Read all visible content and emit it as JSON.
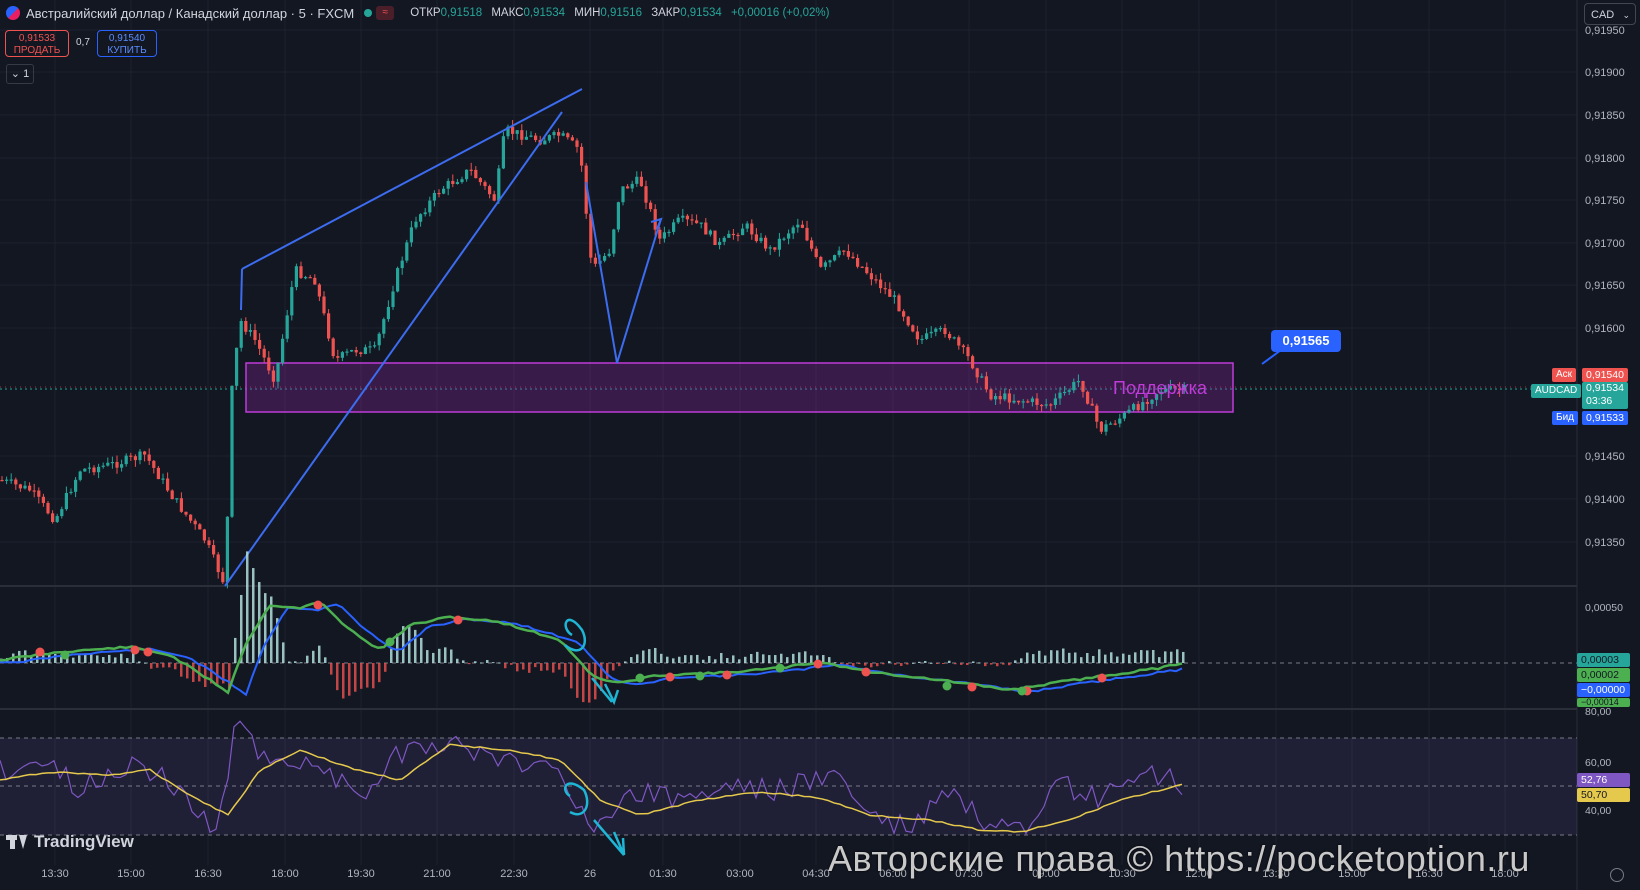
{
  "header": {
    "symbol": "Австралийский доллар / Канадский доллар · 5 · FXCM",
    "market_badge": "≈",
    "ohlc": [
      {
        "label": "ОТКР",
        "value": "0,91518"
      },
      {
        "label": "МАКС",
        "value": "0,91534"
      },
      {
        "label": "МИН",
        "value": "0,91516"
      },
      {
        "label": "ЗАКР",
        "value": "0,91534"
      }
    ],
    "change": "+0,00016 (+0,02%)"
  },
  "trade": {
    "sell_price": "0,91533",
    "sell_label": "ПРОДАТЬ",
    "spread": "0,7",
    "buy_price": "0,91540",
    "buy_label": "КУПИТЬ"
  },
  "collapse_label": "⌄ 1",
  "currency": "CAD",
  "price_axis": [
    "0,91950",
    "0,91900",
    "0,91850",
    "0,91800",
    "0,91750",
    "0,91700",
    "0,91650",
    "0,91600",
    "0,91450",
    "0,91400",
    "0,91350"
  ],
  "price_tags": {
    "ask_label": "Аск",
    "ask": "0,91540",
    "symbol_label": "AUDCAD",
    "last": "0,91534",
    "countdown": "03:36",
    "bid_label": "Бид",
    "bid": "0,91533"
  },
  "macd_axis": [
    "0,00050"
  ],
  "macd_tags": [
    "0,00003",
    "0,00002",
    "−0,00000",
    "−0,00014"
  ],
  "rsi_axis": [
    "80,00",
    "60,00",
    "40,00"
  ],
  "rsi_tags": [
    "52,76",
    "50,70"
  ],
  "time_axis": [
    "13:30",
    "15:00",
    "16:30",
    "18:00",
    "19:30",
    "21:00",
    "22:30",
    "26",
    "01:30",
    "03:00",
    "04:30",
    "06:00",
    "07:30",
    "09:00",
    "10:30",
    "12:00",
    "13:30",
    "15:00",
    "16:30",
    "18:00"
  ],
  "annotations": {
    "callout": "0,91565",
    "zone_label": "Поддержка"
  },
  "branding": "TradingView",
  "watermark": "Авторские права © https://pocketoption.ru",
  "colors": {
    "background": "#131722",
    "up": "#26a69a",
    "down": "#ef5350",
    "line": "#2962ff",
    "zone": "#9c27b0",
    "rsi": "#7e57c2",
    "rsi_ma": "#e5c94d"
  }
}
